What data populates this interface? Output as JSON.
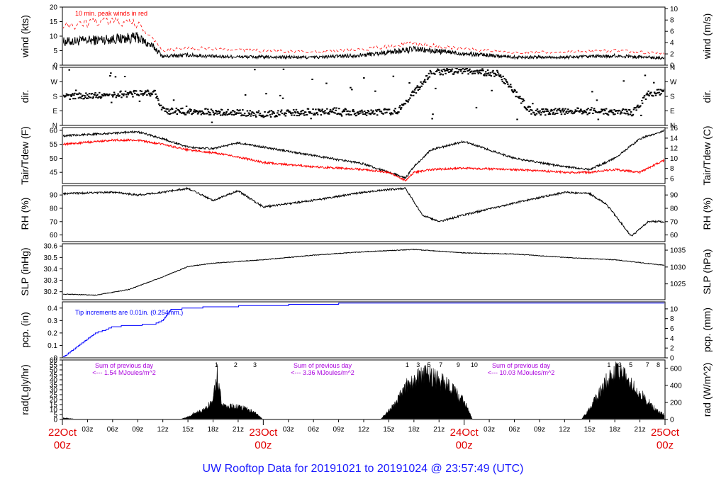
{
  "title": "UW Rooftop Data for 20191021  to  20191024 @ 23:57:49  (UTC)",
  "colors": {
    "main": "#000000",
    "red": "#ff0000",
    "blue": "#0000ff",
    "purple": "#aa00dd",
    "date": "#e00000",
    "title": "#1a1aff"
  },
  "chart_data": [
    {
      "type": "line",
      "name": "wind",
      "ylabel": "wind (kts)",
      "ylabel_right": "wind (m/s)",
      "ylim": [
        0,
        20
      ],
      "yticks": [
        0,
        5,
        10,
        15,
        20
      ],
      "ylim_right": [
        0,
        10.29
      ],
      "yticks_right": [
        0,
        2,
        4,
        6,
        8,
        10
      ],
      "annotation": "10 min. peak winds in red",
      "series": [
        {
          "color": "#000000",
          "x": [
            0,
            3,
            6,
            9,
            11,
            12,
            15,
            18,
            24,
            30,
            36,
            42,
            48,
            54,
            60,
            66,
            72
          ],
          "y": [
            8,
            8.5,
            9,
            9.5,
            6,
            3,
            3.5,
            3,
            2.8,
            2.7,
            3.5,
            5.5,
            4,
            2.8,
            2.7,
            3.2,
            2.5
          ]
        },
        {
          "color": "#ff0000",
          "x": [
            0,
            3,
            6,
            9,
            11,
            12,
            15,
            18,
            24,
            30,
            36,
            42,
            48,
            54,
            60,
            66,
            72
          ],
          "y": [
            13,
            14.5,
            15,
            14,
            9,
            5,
            6,
            5.5,
            5,
            4.5,
            5.5,
            7.5,
            5.5,
            4.5,
            4.5,
            5,
            4
          ]
        }
      ]
    },
    {
      "type": "scatter",
      "name": "direction",
      "ylabel": "dir.",
      "ylabel_right": "dir.",
      "ytick_labels": [
        "N",
        "E",
        "S",
        "W",
        "N"
      ],
      "ylim": [
        0,
        360
      ],
      "ytick_values": [
        0,
        90,
        180,
        270,
        360
      ],
      "series": [
        {
          "color": "#000000",
          "x": [
            0,
            4,
            8,
            11,
            12,
            16,
            20,
            24,
            28,
            32,
            36,
            40,
            44,
            48,
            52,
            56,
            60,
            64,
            68,
            70,
            72
          ],
          "y": [
            180,
            185,
            195,
            200,
            90,
            85,
            80,
            70,
            80,
            90,
            75,
            90,
            330,
            340,
            320,
            80,
            90,
            85,
            80,
            200,
            210
          ]
        }
      ]
    },
    {
      "type": "line",
      "name": "temperature",
      "ylabel": "Tair/Tdew (F)",
      "ylabel_right": "Tair/Tdew (C)",
      "ylim": [
        41,
        61
      ],
      "yticks": [
        45,
        50,
        55,
        60
      ],
      "ylim_right": [
        5,
        16.1
      ],
      "yticks_right": [
        6,
        8,
        10,
        12,
        14,
        16
      ],
      "series": [
        {
          "color": "#000000",
          "x": [
            0,
            6,
            9,
            12,
            15,
            18,
            21,
            24,
            30,
            36,
            39,
            41,
            42,
            44,
            48,
            54,
            60,
            63,
            66,
            69,
            72
          ],
          "y": [
            58,
            59,
            59.5,
            57,
            54,
            53.5,
            55.5,
            54,
            51,
            48,
            45,
            43,
            47,
            53,
            56,
            50,
            47,
            46,
            50,
            57,
            60
          ]
        },
        {
          "color": "#ff0000",
          "x": [
            0,
            6,
            9,
            12,
            15,
            18,
            21,
            24,
            30,
            36,
            39,
            41,
            42,
            44,
            48,
            54,
            60,
            63,
            66,
            69,
            72
          ],
          "y": [
            55,
            56.5,
            56.5,
            55,
            53,
            52,
            50.5,
            48.5,
            47,
            46,
            45,
            42,
            45,
            46,
            46.5,
            46,
            45,
            45,
            46,
            45,
            49.5
          ]
        }
      ]
    },
    {
      "type": "line",
      "name": "humidity",
      "ylabel": "RH (%)",
      "ylabel_right": "RH (%)",
      "ylim": [
        55,
        97
      ],
      "yticks": [
        60,
        70,
        80,
        90
      ],
      "series": [
        {
          "color": "#000000",
          "x": [
            0,
            6,
            9,
            12,
            15,
            18,
            21,
            24,
            30,
            36,
            39,
            41,
            43,
            45,
            48,
            54,
            60,
            63,
            65,
            68,
            70,
            72
          ],
          "y": [
            91,
            92,
            90,
            92,
            95,
            86,
            93,
            81,
            86,
            92,
            94,
            95,
            75,
            70,
            75,
            84,
            92,
            91,
            83,
            59,
            70,
            70
          ]
        }
      ]
    },
    {
      "type": "line",
      "name": "pressure",
      "ylabel": "SLP (inHg)",
      "ylabel_right": "SLP (hPa)",
      "ylim": [
        30.13,
        30.62
      ],
      "yticks": [
        30.2,
        30.3,
        30.4,
        30.5,
        30.6
      ],
      "ylim_right": [
        1020.3,
        1036.9
      ],
      "yticks_right": [
        1025,
        1030,
        1035
      ],
      "series": [
        {
          "color": "#000000",
          "x": [
            0,
            4,
            8,
            12,
            15,
            18,
            24,
            30,
            36,
            42,
            48,
            54,
            60,
            66,
            72
          ],
          "y": [
            30.18,
            30.17,
            30.22,
            30.33,
            30.42,
            30.45,
            30.48,
            30.52,
            30.55,
            30.57,
            30.54,
            30.53,
            30.5,
            30.48,
            30.43
          ]
        }
      ]
    },
    {
      "type": "line",
      "name": "precipitation",
      "ylabel": "pcp. (in)",
      "ylabel_right": "pcp. (mm)",
      "ylim": [
        0,
        0.45
      ],
      "yticks": [
        0,
        0.1,
        0.2,
        0.3,
        0.4
      ],
      "ylim_right": [
        0,
        11.43
      ],
      "yticks_right": [
        0,
        2,
        4,
        6,
        8,
        10
      ],
      "annotation": "Tip increments are 0.01in. (0.254mm.)",
      "series": [
        {
          "color": "#0000ff",
          "x": [
            0,
            1,
            2,
            3,
            4,
            5,
            6,
            8,
            11,
            12,
            13,
            18,
            24,
            30,
            36,
            42,
            48,
            54,
            60,
            66,
            72
          ],
          "y": [
            0,
            0.05,
            0.1,
            0.15,
            0.2,
            0.22,
            0.25,
            0.26,
            0.27,
            0.3,
            0.39,
            0.41,
            0.42,
            0.43,
            0.44,
            0.44,
            0.44,
            0.44,
            0.44,
            0.44,
            0.44
          ]
        }
      ]
    },
    {
      "type": "area",
      "name": "radiation",
      "ylabel": "rad(Lgly/hr)",
      "ylabel_right": "rad (W/m^2)",
      "ylim": [
        0,
        60
      ],
      "yticks": [
        0,
        5,
        10,
        15,
        20,
        25,
        30,
        35,
        40,
        45,
        50,
        55,
        60
      ],
      "ylim_right": [
        0,
        697.8
      ],
      "yticks_right": [
        0,
        200,
        400,
        600
      ],
      "series": [
        {
          "color": "#000000",
          "x": [
            0,
            1,
            2,
            14,
            15,
            16,
            17,
            18,
            18.5,
            19,
            20,
            21,
            22,
            23,
            24,
            38,
            39,
            40,
            41,
            42,
            43,
            44,
            45,
            46,
            47,
            48,
            49,
            62,
            63,
            64,
            65,
            66,
            67,
            68,
            69,
            70,
            71,
            72
          ],
          "y": [
            2,
            1,
            0,
            0,
            3,
            8,
            12,
            20,
            55,
            18,
            15,
            14,
            12,
            8,
            0,
            0,
            10,
            22,
            38,
            45,
            52,
            50,
            45,
            40,
            30,
            20,
            0,
            0,
            12,
            28,
            45,
            55,
            50,
            40,
            30,
            20,
            10,
            5
          ]
        }
      ],
      "hour_labels_day1": [
        "1",
        "2",
        "3"
      ],
      "hour_labels_day2": [
        "1",
        "3",
        "5",
        "7",
        "9",
        "10"
      ],
      "hour_labels_day3": [
        "1",
        "3",
        "5",
        "7",
        "8"
      ],
      "sums": [
        {
          "line1": "Sum of previous day",
          "line2": "<--- 1.54 MJoules/m^2"
        },
        {
          "line1": "Sum of previous day",
          "line2": "<--- 3.36 MJoules/m^2"
        },
        {
          "line1": "Sum of previous day",
          "line2": "<--- 10.03 MJoules/m^2"
        }
      ]
    }
  ],
  "x_axis": {
    "minor_labels": [
      "03z",
      "06z",
      "09z",
      "12z",
      "15z",
      "18z",
      "21z",
      "03z",
      "06z",
      "09z",
      "12z",
      "15z",
      "18z",
      "21z",
      "03z",
      "06z",
      "09z",
      "12z",
      "15z",
      "18z",
      "21z"
    ],
    "major_labels": [
      {
        "date": "22Oct",
        "time": "00z"
      },
      {
        "date": "23Oct",
        "time": "00z"
      },
      {
        "date": "24Oct",
        "time": "00z"
      },
      {
        "date": "25Oct",
        "time": "00z"
      }
    ]
  }
}
